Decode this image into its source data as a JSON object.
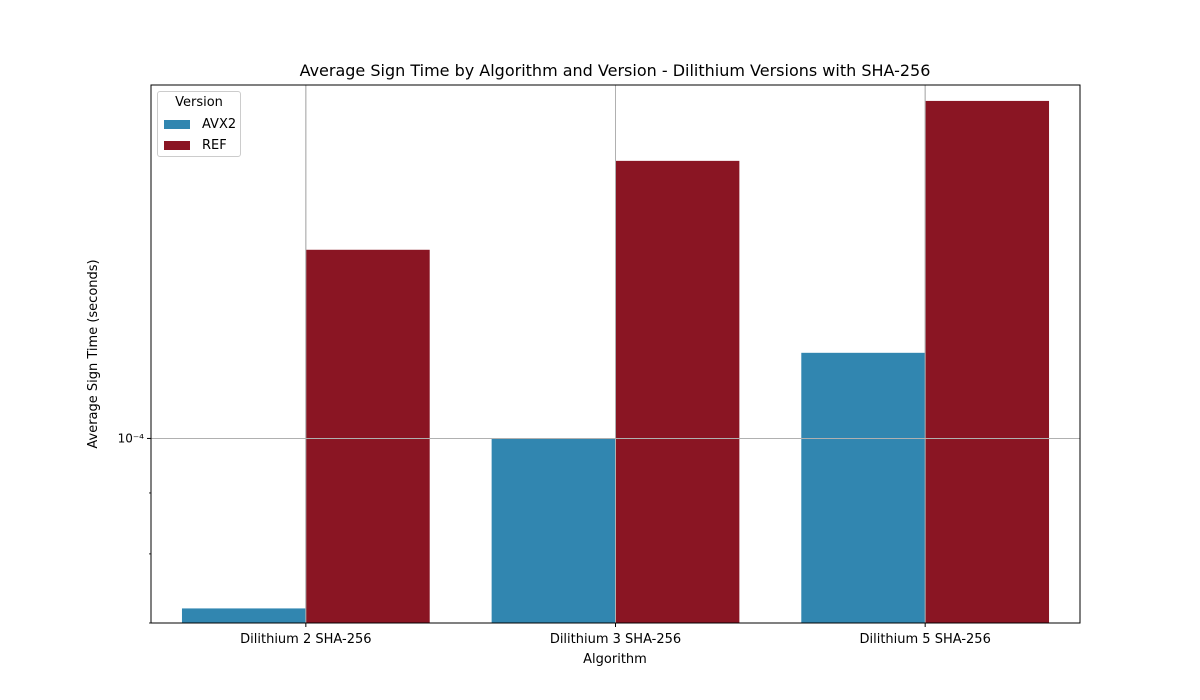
{
  "chart_data": {
    "type": "bar",
    "title": "Average Sign Time by Algorithm and Version - Dilithium Versions with SHA-256",
    "xlabel": "Algorithm",
    "ylabel": "Average Sign Time (seconds)",
    "yscale": "log",
    "ylim": [
      7e-05,
      0.000198
    ],
    "ytick_label": "10⁻⁴",
    "categories": [
      "Dilithium 2 SHA-256",
      "Dilithium 3 SHA-256",
      "Dilithium 5 SHA-256"
    ],
    "series": [
      {
        "name": "AVX2",
        "color": "#3186b0",
        "values": [
          7.2e-05,
          0.0001,
          0.000118
        ]
      },
      {
        "name": "REF",
        "color": "#8a1523",
        "values": [
          0.000144,
          0.000171,
          0.000192
        ]
      }
    ],
    "legend": {
      "title": "Version",
      "position": "top-left"
    },
    "grid": true
  }
}
